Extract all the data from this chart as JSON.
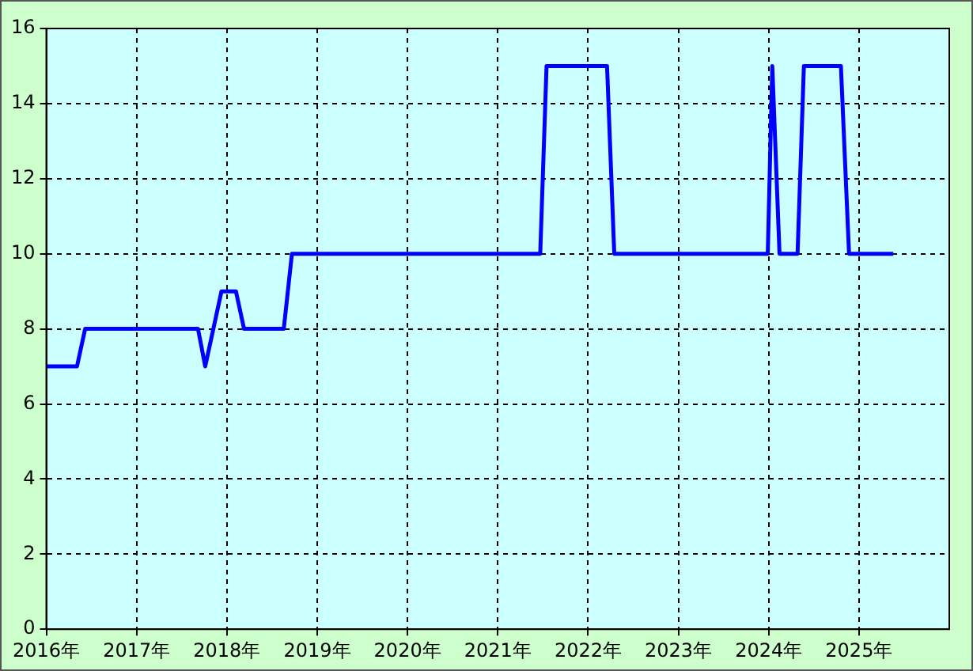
{
  "chart_data": {
    "type": "line",
    "x": [
      2016.0,
      2016.34,
      2016.43,
      2017.68,
      2017.76,
      2017.94,
      2018.1,
      2018.19,
      2018.63,
      2018.72,
      2021.47,
      2021.54,
      2022.21,
      2022.29,
      2023.99,
      2024.04,
      2024.12,
      2024.32,
      2024.39,
      2024.8,
      2024.89,
      2025.38
    ],
    "series": [
      {
        "color": "#0000ff",
        "values": [
          7,
          7,
          8,
          8,
          7,
          9,
          9,
          8,
          8,
          10,
          10,
          15,
          15,
          10,
          10,
          15,
          10,
          10,
          15,
          15,
          10,
          10
        ]
      }
    ],
    "xlim": [
      2016,
      2026
    ],
    "xticks": [
      {
        "value": 2016,
        "label": "2016年"
      },
      {
        "value": 2017,
        "label": "2017年"
      },
      {
        "value": 2018,
        "label": "2018年"
      },
      {
        "value": 2019,
        "label": "2019年"
      },
      {
        "value": 2020,
        "label": "2020年"
      },
      {
        "value": 2021,
        "label": "2021年"
      },
      {
        "value": 2022,
        "label": "2022年"
      },
      {
        "value": 2023,
        "label": "2023年"
      },
      {
        "value": 2024,
        "label": "2024年"
      },
      {
        "value": 2025,
        "label": "2025年"
      }
    ],
    "ylim": [
      0,
      16
    ],
    "yticks": [
      0,
      2,
      4,
      6,
      8,
      10,
      12,
      14,
      16
    ],
    "grid": true,
    "legend": false,
    "marker": "none",
    "line_style": "solid"
  }
}
